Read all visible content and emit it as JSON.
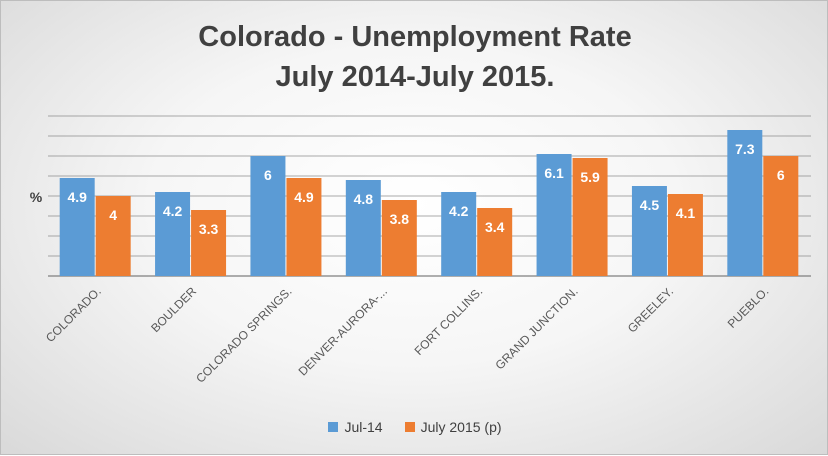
{
  "chart_data": {
    "type": "bar",
    "title_lines": [
      "Colorado - Unemployment Rate",
      "July 2014-July 2015."
    ],
    "ylabel": "%",
    "categories": [
      "COLORADO.",
      "BOULDER",
      "COLORADO SPRINGS.",
      "DENVER-AURORA-...",
      "FORT COLLINS.",
      "GRAND JUNCTION.",
      "GREELEY.",
      "PUEBLO."
    ],
    "series": [
      {
        "name": "Jul-14",
        "values": [
          4.9,
          4.2,
          6,
          4.8,
          4.2,
          6.1,
          4.5,
          7.3
        ],
        "color": "#5b9bd5"
      },
      {
        "name": "July 2015 (p)",
        "values": [
          4,
          3.3,
          4.9,
          3.8,
          3.4,
          5.9,
          4.1,
          6
        ],
        "color": "#ed7d31"
      }
    ],
    "ylim": [
      0,
      8
    ],
    "grid": true,
    "legend_position": "bottom"
  }
}
